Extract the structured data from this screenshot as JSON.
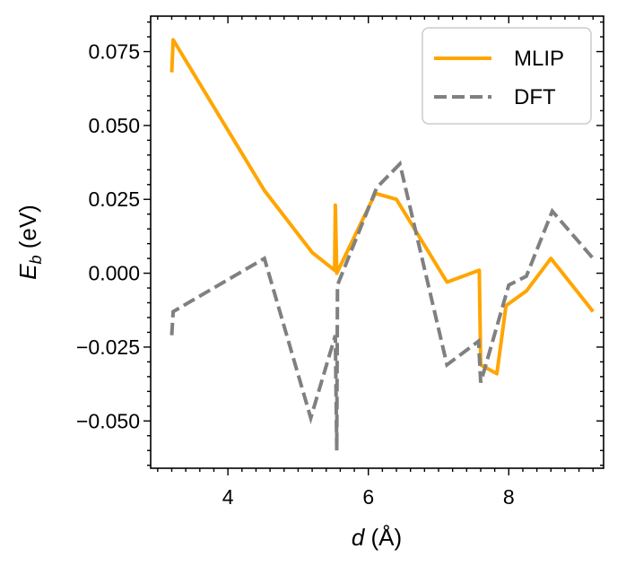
{
  "chart_data": {
    "type": "line",
    "title": "",
    "xlabel_var": "d",
    "xlabel_unit": " (Å)",
    "ylabel_var": "E",
    "ylabel_sub": "b",
    "ylabel_unit": " (eV)",
    "xlim": [
      2.9,
      9.35
    ],
    "ylim": [
      -0.066,
      0.087
    ],
    "x_ticks": [
      {
        "value": 4,
        "label": "4"
      },
      {
        "value": 6,
        "label": "6"
      },
      {
        "value": 8,
        "label": "8"
      }
    ],
    "y_ticks": [
      {
        "value": 0.075,
        "label": "0.075"
      },
      {
        "value": 0.05,
        "label": "0.050"
      },
      {
        "value": 0.025,
        "label": "0.025"
      },
      {
        "value": 0.0,
        "label": "0.000"
      },
      {
        "value": -0.025,
        "label": "−0.025"
      },
      {
        "value": -0.05,
        "label": "−0.050"
      }
    ],
    "grid": false,
    "legend_position": "top-right",
    "series": [
      {
        "name": "MLIP",
        "color": "#FFA500",
        "style": "solid",
        "x": [
          3.2,
          3.22,
          4.52,
          5.2,
          5.52,
          5.53,
          5.55,
          6.1,
          6.4,
          7.12,
          7.58,
          7.6,
          7.83,
          7.96,
          8.25,
          8.6,
          9.2
        ],
        "y": [
          0.068,
          0.079,
          0.028,
          0.007,
          0.001,
          0.023,
          0.0,
          0.027,
          0.025,
          -0.003,
          0.001,
          -0.031,
          -0.034,
          -0.011,
          -0.006,
          0.005,
          -0.013
        ]
      },
      {
        "name": "DFT",
        "color": "#808080",
        "style": "dashed",
        "x": [
          3.2,
          3.22,
          4.52,
          5.18,
          5.53,
          5.55,
          5.56,
          6.12,
          6.45,
          7.12,
          7.57,
          7.6,
          8.0,
          8.25,
          8.62,
          9.2
        ],
        "y": [
          -0.021,
          -0.013,
          0.005,
          -0.049,
          -0.021,
          -0.06,
          -0.004,
          0.029,
          0.037,
          -0.031,
          -0.023,
          -0.037,
          -0.004,
          -0.001,
          0.021,
          0.005
        ]
      }
    ]
  }
}
